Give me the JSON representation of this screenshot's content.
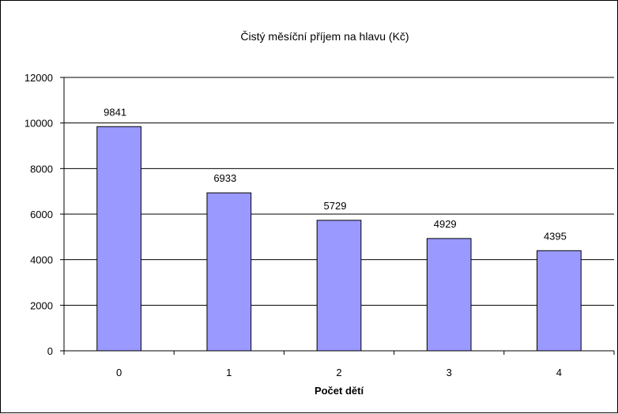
{
  "chart_data": {
    "type": "bar",
    "title": "Čistý měsíční příjem na hlavu (Kč)",
    "xlabel": "Počet dětí",
    "ylabel": "",
    "categories": [
      "0",
      "1",
      "2",
      "3",
      "4"
    ],
    "values": [
      9841,
      6933,
      5729,
      4929,
      4395
    ],
    "data_labels": [
      "9841",
      "6933",
      "5729",
      "4929",
      "4395"
    ],
    "ylim": [
      0,
      12000
    ],
    "yticks": [
      "0",
      "2000",
      "4000",
      "6000",
      "8000",
      "10000",
      "12000"
    ],
    "grid": true,
    "legend": "none",
    "colors": {
      "bar": "#9999ff",
      "bar_border": "#000000",
      "grid": "#000000",
      "background": "#ffffff"
    }
  }
}
